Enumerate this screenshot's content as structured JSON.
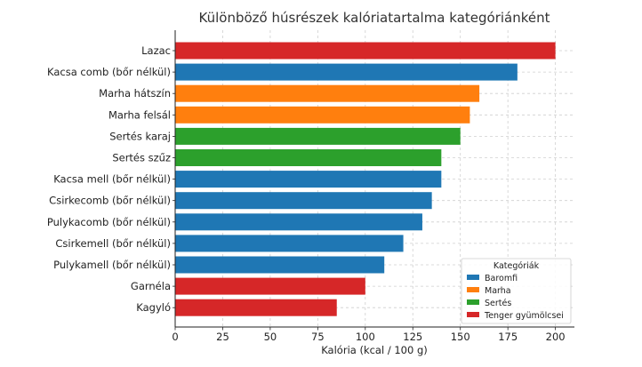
{
  "chart_data": {
    "type": "bar",
    "orientation": "horizontal",
    "title": "Különböző húsrészek kalóriatartalma kategóriánként",
    "xlabel": "Kalória (kcal / 100 g)",
    "ylabel": "",
    "xlim": [
      0,
      210
    ],
    "x_ticks": [
      0,
      25,
      50,
      75,
      100,
      125,
      150,
      175,
      200
    ],
    "grid": true,
    "legend": {
      "title": "Kategóriák",
      "position": "lower-right",
      "entries": [
        {
          "name": "Baromfi",
          "color": "#1f77b4"
        },
        {
          "name": "Marha",
          "color": "#ff7f0e"
        },
        {
          "name": "Sertés",
          "color": "#2ca02c"
        },
        {
          "name": "Tenger gyümölcsei",
          "color": "#d62728"
        }
      ]
    },
    "bars": [
      {
        "label": "Lazac",
        "value": 200,
        "category": "Tenger gyümölcsei"
      },
      {
        "label": "Kacsa comb (bőr nélkül)",
        "value": 180,
        "category": "Baromfi"
      },
      {
        "label": "Marha hátszín",
        "value": 160,
        "category": "Marha"
      },
      {
        "label": "Marha felsál",
        "value": 155,
        "category": "Marha"
      },
      {
        "label": "Sertés karaj",
        "value": 150,
        "category": "Sertés"
      },
      {
        "label": "Sertés szűz",
        "value": 140,
        "category": "Sertés"
      },
      {
        "label": "Kacsa mell (bőr nélkül)",
        "value": 140,
        "category": "Baromfi"
      },
      {
        "label": "Csirkecomb (bőr nélkül)",
        "value": 135,
        "category": "Baromfi"
      },
      {
        "label": "Pulykacomb (bőr nélkül)",
        "value": 130,
        "category": "Baromfi"
      },
      {
        "label": "Csirkemell (bőr nélkül)",
        "value": 120,
        "category": "Baromfi"
      },
      {
        "label": "Pulykamell (bőr nélkül)",
        "value": 110,
        "category": "Baromfi"
      },
      {
        "label": "Garnéla",
        "value": 100,
        "category": "Tenger gyümölcsei"
      },
      {
        "label": "Kagyló",
        "value": 85,
        "category": "Tenger gyümölcsei"
      }
    ]
  }
}
